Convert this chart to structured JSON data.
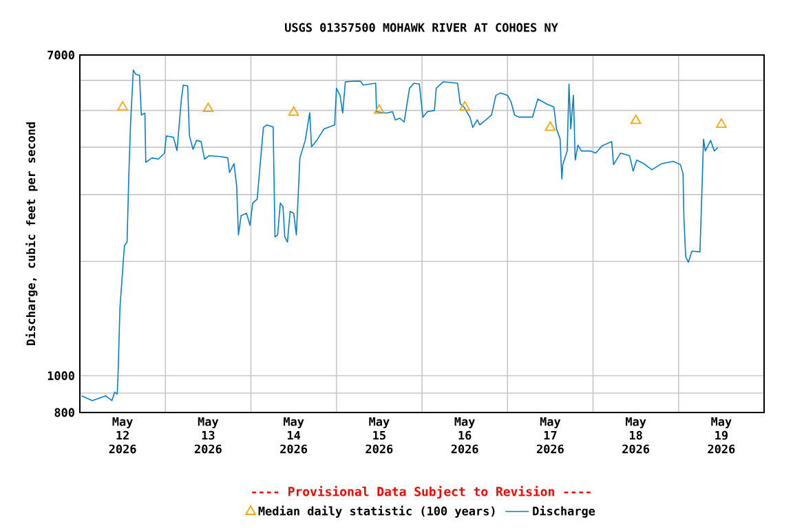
{
  "chart_data": {
    "type": "line",
    "title": "USGS 01357500 MOHAWK RIVER AT COHOES NY",
    "ylabel": "Discharge, cubic feet per second",
    "annotations": [
      "---- Provisional Data Subject to Revision ----"
    ],
    "xlim": [
      "2026-05-12T00:00",
      "2026-05-20T00:00"
    ],
    "xticks": [
      {
        "value": "2026-05-12T12:00",
        "label": "May 12 2026"
      },
      {
        "value": "2026-05-13T12:00",
        "label": "May 13 2026"
      },
      {
        "value": "2026-05-14T12:00",
        "label": "May 14 2026"
      },
      {
        "value": "2026-05-15T12:00",
        "label": "May 15 2026"
      },
      {
        "value": "2026-05-16T12:00",
        "label": "May 16 2026"
      },
      {
        "value": "2026-05-17T12:00",
        "label": "May 17 2026"
      },
      {
        "value": "2026-05-18T12:00",
        "label": "May 18 2026"
      },
      {
        "value": "2026-05-19T12:00",
        "label": "May 19 2026"
      },
      {
        "value": "2026-05-13T00:00",
        "label": null
      },
      {
        "value": "2026-05-14T00:00",
        "label": null
      },
      {
        "value": "2026-05-15T00:00",
        "label": null
      },
      {
        "value": "2026-05-16T00:00",
        "label": null
      },
      {
        "value": "2026-05-17T00:00",
        "label": null
      },
      {
        "value": "2026-05-18T00:00",
        "label": null
      },
      {
        "value": "2026-05-19T00:00",
        "label": null
      }
    ],
    "ylim": [
      800,
      7000
    ],
    "yticks": [
      800,
      {
        "value": 900,
        "label": null
      },
      1000,
      {
        "value": 2000,
        "label": null
      },
      {
        "value": 3000,
        "label": null
      },
      {
        "value": 4000,
        "label": null
      },
      {
        "value": 5000,
        "label": null
      },
      {
        "value": 6000,
        "label": null
      },
      7000
    ],
    "log": true,
    "grid": true,
    "legend": "bottom",
    "series": [
      {
        "name": "Median daily statistic (100 years)",
        "type": "scatter",
        "marker": "triangle",
        "color": "#ffa500",
        "x": [
          "2026-05-12T12:00",
          "2026-05-13T12:00",
          "2026-05-14T12:00",
          "2026-05-15T12:00",
          "2026-05-16T12:00",
          "2026-05-17T12:00",
          "2026-05-18T12:00",
          "2026-05-19T12:00"
        ],
        "values": [
          5100,
          5050,
          4940,
          5000,
          5100,
          4510,
          4700,
          4590
        ]
      },
      {
        "name": "Discharge",
        "marker": "none",
        "line_style": "solid",
        "color": "#0080d0",
        "x": [
          "2026-05-12T00:30",
          "2026-05-12T03:30",
          "2026-05-12T07:15",
          "2026-05-12T09:00",
          "2026-05-12T09:45",
          "2026-05-12T10:30",
          "2026-05-12T10:45",
          "2026-05-12T11:15",
          "2026-05-12T12:30",
          "2026-05-12T13:15",
          "2026-05-12T13:45",
          "2026-05-12T14:15",
          "2026-05-12T15:00",
          "2026-05-12T15:45",
          "2026-05-12T16:45",
          "2026-05-12T17:15",
          "2026-05-12T18:15",
          "2026-05-12T18:30",
          "2026-05-12T20:15",
          "2026-05-12T22:00",
          "2026-05-12T23:45",
          "2026-05-13T00:15",
          "2026-05-13T02:15",
          "2026-05-13T03:15",
          "2026-05-13T04:30",
          "2026-05-13T05:00",
          "2026-05-13T06:15",
          "2026-05-13T06:45",
          "2026-05-13T07:45",
          "2026-05-13T08:45",
          "2026-05-13T10:00",
          "2026-05-13T11:00",
          "2026-05-13T12:15",
          "2026-05-13T15:30",
          "2026-05-13T17:30",
          "2026-05-13T18:00",
          "2026-05-13T19:15",
          "2026-05-13T20:00",
          "2026-05-13T20:30",
          "2026-05-13T21:15",
          "2026-05-13T22:45",
          "2026-05-13T23:45",
          "2026-05-14T00:30",
          "2026-05-14T01:45",
          "2026-05-14T03:30",
          "2026-05-14T04:30",
          "2026-05-14T06:15",
          "2026-05-14T06:45",
          "2026-05-14T07:30",
          "2026-05-14T08:15",
          "2026-05-14T09:00",
          "2026-05-14T09:30",
          "2026-05-14T10:15",
          "2026-05-14T11:00",
          "2026-05-14T12:00",
          "2026-05-14T12:45",
          "2026-05-14T13:45",
          "2026-05-14T15:15",
          "2026-05-14T16:30",
          "2026-05-14T17:00",
          "2026-05-14T18:30",
          "2026-05-14T20:30",
          "2026-05-14T23:30",
          "2026-05-15T00:00",
          "2026-05-15T01:00",
          "2026-05-15T01:45",
          "2026-05-15T02:30",
          "2026-05-15T05:00",
          "2026-05-15T06:45",
          "2026-05-15T07:30",
          "2026-05-15T11:00",
          "2026-05-15T11:15",
          "2026-05-15T14:00",
          "2026-05-15T15:45",
          "2026-05-15T16:30",
          "2026-05-15T17:45",
          "2026-05-15T19:00",
          "2026-05-15T20:30",
          "2026-05-15T21:45",
          "2026-05-15T23:15",
          "2026-05-16T00:15",
          "2026-05-16T01:30",
          "2026-05-16T03:30",
          "2026-05-16T04:00",
          "2026-05-16T06:00",
          "2026-05-16T10:00",
          "2026-05-16T10:45",
          "2026-05-16T11:45",
          "2026-05-16T13:30",
          "2026-05-16T14:15",
          "2026-05-16T15:30",
          "2026-05-16T16:15",
          "2026-05-16T19:30",
          "2026-05-16T20:45",
          "2026-05-16T22:00",
          "2026-05-17T00:00",
          "2026-05-17T01:00",
          "2026-05-17T02:00",
          "2026-05-17T03:15",
          "2026-05-17T07:00",
          "2026-05-17T08:30",
          "2026-05-17T11:00",
          "2026-05-17T13:00",
          "2026-05-17T13:45",
          "2026-05-17T14:45",
          "2026-05-17T15:15",
          "2026-05-17T15:30",
          "2026-05-17T16:45",
          "2026-05-17T17:15",
          "2026-05-17T17:45",
          "2026-05-17T18:30",
          "2026-05-17T19:00",
          "2026-05-17T19:45",
          "2026-05-17T20:45",
          "2026-05-17T23:15",
          "2026-05-18T00:45",
          "2026-05-18T02:30",
          "2026-05-18T05:15",
          "2026-05-18T05:45",
          "2026-05-18T07:45",
          "2026-05-18T10:15",
          "2026-05-18T11:15",
          "2026-05-18T12:15",
          "2026-05-18T14:15",
          "2026-05-18T16:30",
          "2026-05-18T19:15",
          "2026-05-18T22:30",
          "2026-05-19T00:30",
          "2026-05-19T01:15",
          "2026-05-19T01:30",
          "2026-05-19T02:00",
          "2026-05-19T02:45",
          "2026-05-19T03:45",
          "2026-05-19T06:00",
          "2026-05-19T06:30",
          "2026-05-19T07:00",
          "2026-05-19T07:30",
          "2026-05-19T09:00",
          "2026-05-19T10:00",
          "2026-05-19T11:00"
        ],
        "values": [
          885,
          860,
          885,
          860,
          905,
          895,
          1030,
          1510,
          2200,
          2250,
          3410,
          4660,
          6390,
          6220,
          6190,
          4860,
          4920,
          3650,
          3750,
          3720,
          3860,
          4280,
          4250,
          3920,
          5360,
          5830,
          5800,
          4290,
          3950,
          4170,
          4140,
          3720,
          3800,
          3780,
          3750,
          3430,
          3620,
          3160,
          2350,
          2640,
          2680,
          2490,
          2850,
          2920,
          4510,
          4580,
          4520,
          2320,
          2350,
          2850,
          2790,
          2320,
          2250,
          2710,
          2680,
          2350,
          3750,
          4170,
          4930,
          4010,
          4170,
          4470,
          4580,
          5720,
          5480,
          4920,
          5950,
          5970,
          5970,
          5830,
          5900,
          4960,
          4920,
          4960,
          4720,
          4770,
          4660,
          5720,
          5900,
          5870,
          4800,
          4960,
          5000,
          5720,
          5950,
          5900,
          5200,
          5110,
          4790,
          4510,
          4720,
          4580,
          4860,
          5480,
          5560,
          5480,
          5260,
          4860,
          4800,
          4800,
          5360,
          5200,
          5110,
          4470,
          4210,
          3300,
          3600,
          3910,
          5870,
          4470,
          5480,
          3700,
          4050,
          3910,
          3910,
          3860,
          4030,
          4140,
          3600,
          3860,
          3800,
          3460,
          3700,
          3620,
          3490,
          3620,
          3670,
          3600,
          3410,
          2610,
          2060,
          1990,
          2130,
          2120,
          2950,
          4200,
          3910,
          4170,
          3910,
          3990
        ]
      }
    ]
  }
}
